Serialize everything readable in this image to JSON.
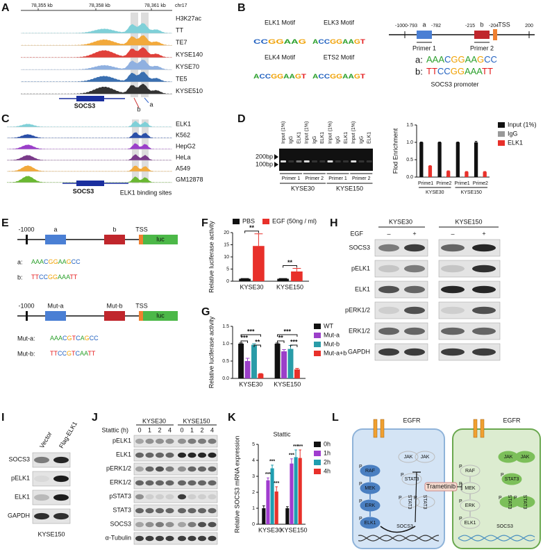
{
  "panel_labels": [
    "A",
    "B",
    "C",
    "D",
    "E",
    "F",
    "G",
    "H",
    "I",
    "J",
    "K",
    "L"
  ],
  "panel_a": {
    "coordinates": [
      "78,355 kb",
      "78,358 kb",
      "78,361 kb"
    ],
    "chromosome": "chr17",
    "header": "H3K27ac",
    "tracks": [
      "TT",
      "TE7",
      "KYSE140",
      "KYSE70",
      "TE5",
      "KYSE510"
    ],
    "gene": "SOCS3",
    "sites": [
      "b",
      "a"
    ]
  },
  "panel_b": {
    "motifs": [
      {
        "name": "ELK1 Motif",
        "logo": "CCGGAAG"
      },
      {
        "name": "ELK3 Motif",
        "logo": "ACCGGAAGT"
      },
      {
        "name": "ELK4 Motif",
        "logo": "ACCGGAAGT"
      },
      {
        "name": "ETS2 Motif",
        "logo": "ACCGGAAGT"
      }
    ],
    "positions": [
      "-1000",
      "-793",
      "-782",
      "-215",
      "-204",
      "200"
    ],
    "sites": [
      "a",
      "b"
    ],
    "tss": "TSS",
    "primers": [
      "Primer 1",
      "Primer 2"
    ],
    "sequences": [
      {
        "label": "a:",
        "seq": "AAACGGAAGCC"
      },
      {
        "label": "b:",
        "seq": "TTCCGGAAATT"
      }
    ],
    "caption": "SOCS3 promoter"
  },
  "panel_c": {
    "tracks": [
      "ELK1",
      "K562",
      "HepG2",
      "HeLa",
      "A549",
      "GM12878"
    ],
    "gene": "SOCS3",
    "annotation": "ELK1 binding sites"
  },
  "panel_d": {
    "gel": {
      "lanes": [
        "Input (1%)",
        "IgG",
        "ELK1",
        "Input (1%)",
        "IgG",
        "ELK1",
        "Input (1%)",
        "IgG",
        "ELK1",
        "Input (1%)",
        "IgG",
        "ELK1"
      ],
      "markers": [
        "200bp",
        "100bp"
      ],
      "primers": [
        "Primer 1",
        "Primer 2",
        "Primer 1",
        "Primer 2"
      ],
      "cell_lines": [
        "KYSE30",
        "KYSE150"
      ]
    },
    "chart": {
      "type": "bar",
      "ylabel": "Flod Enrichment",
      "categories": [
        "Prime1",
        "Prime2",
        "Prime1",
        "Prime2"
      ],
      "groups": [
        "KYSE30",
        "KYSE150"
      ],
      "series": [
        {
          "name": "Input (1%)",
          "color": "#111111",
          "values": [
            1,
            1,
            1,
            1
          ],
          "errors": [
            0.01,
            0.01,
            0.01,
            0.03
          ]
        },
        {
          "name": "IgG",
          "color": "#999999",
          "values": [
            0.01,
            0.01,
            0.01,
            0.01
          ],
          "errors": [
            0,
            0,
            0,
            0
          ]
        },
        {
          "name": "ELK1",
          "color": "#e8302a",
          "values": [
            0.32,
            0.17,
            0.15,
            0.15
          ],
          "errors": [
            0.01,
            0.01,
            0.01,
            0.01
          ]
        }
      ],
      "ylim": [
        0,
        1.5
      ],
      "yticks": [
        {
          "value": 0,
          "label": "0.0"
        },
        0.5,
        {
          "value": 1,
          "label": "1.0"
        },
        1.5
      ],
      "legend": "right"
    }
  },
  "panel_e": {
    "constructs": [
      {
        "position": "-1000",
        "sites": [
          "a",
          "b"
        ],
        "tss": "TSS",
        "reporter": "luc",
        "sequences": [
          {
            "label": "a:",
            "seq": "AAACGGAAGCC"
          },
          {
            "label": "b:",
            "seq": "TTCCGGAAATT"
          }
        ]
      },
      {
        "position": "-1000",
        "sites": [
          "Mut-a",
          "Mut-b"
        ],
        "tss": "TSS",
        "reporter": "luc",
        "sequences": [
          {
            "label": "Mut-a:",
            "seq": "AAACGTCAGCC"
          },
          {
            "label": "Mut-b:",
            "seq": "TTCCGTCAATT"
          }
        ]
      }
    ]
  },
  "panel_f": {
    "type": "bar",
    "ylabel": "Relative luciferase activity",
    "categories": [
      "KYSE30",
      "KYSE150"
    ],
    "series": [
      {
        "name": "PBS",
        "color": "#111111",
        "values": [
          1,
          1
        ],
        "errors": [
          0.1,
          0.1
        ]
      },
      {
        "name": "EGF (50ng / ml)",
        "color": "#e8302a",
        "values": [
          14.5,
          4
        ],
        "errors": [
          5,
          1.3
        ]
      }
    ],
    "ylim": [
      0,
      20
    ],
    "yticks": [
      0,
      5,
      10,
      15,
      20
    ],
    "legend": "top",
    "significance": [
      "**",
      "**"
    ]
  },
  "panel_g": {
    "type": "bar",
    "ylabel": "Relative luciferase activity",
    "categories": [
      "KYSE30",
      "KYSE150"
    ],
    "series": [
      {
        "name": "WT",
        "color": "#111111",
        "values": [
          1,
          1
        ],
        "errors": [
          0.02,
          0.02
        ]
      },
      {
        "name": "Mut-a",
        "color": "#9b3fc9",
        "values": [
          0.5,
          0.78
        ],
        "errors": [
          0.08,
          0.05
        ]
      },
      {
        "name": "Mut-b",
        "color": "#2a9ca8",
        "values": [
          0.97,
          0.85
        ],
        "errors": [
          0.03,
          0.1
        ]
      },
      {
        "name": "Mut-a+b",
        "color": "#e8302a",
        "values": [
          0.13,
          0.26
        ],
        "errors": [
          0.01,
          0.03
        ]
      }
    ],
    "ylim": [
      0,
      1.5
    ],
    "yticks": [
      {
        "value": 0,
        "label": "0.0"
      },
      0.5,
      {
        "value": 1,
        "label": "1.0"
      },
      1.5
    ],
    "legend": "right",
    "significance": [
      [
        "***",
        "***",
        "**"
      ],
      [
        "***",
        "**",
        "***"
      ]
    ]
  },
  "panel_h": {
    "cell_lines": [
      "KYSE30",
      "KYSE150"
    ],
    "treatment": "EGF",
    "conditions": [
      "–",
      "+",
      "–",
      "+"
    ],
    "proteins": [
      "SOCS3",
      "pELK1",
      "ELK1",
      "pERK1/2",
      "ERK1/2",
      "GAPDH"
    ]
  },
  "panel_i": {
    "lanes": [
      "Vector",
      "Flag-ELK1"
    ],
    "proteins": [
      "SOCS3",
      "pELK1",
      "ELK1",
      "GAPDH"
    ],
    "cell_line": "KYSE150"
  },
  "panel_j": {
    "treatment": "Stattic (h)",
    "cell_lines": [
      "KYSE30",
      "KYSE150"
    ],
    "timepoints": [
      "0",
      "1",
      "2",
      "4",
      "0",
      "1",
      "2",
      "4"
    ],
    "proteins": [
      "pELK1",
      "ELK1",
      "pERK1/2",
      "ERK1/2",
      "pSTAT3",
      "STAT3",
      "SOCS3",
      "α-Tubulin"
    ]
  },
  "panel_k": {
    "type": "bar",
    "title": "Stattic",
    "ylabel": "Relative SOCS3 mRNA expression",
    "categories": [
      "KYSE30",
      "KYSE150"
    ],
    "series": [
      {
        "name": "0h",
        "color": "#111111",
        "values": [
          1,
          1
        ],
        "errors": [
          0.15,
          0.1
        ]
      },
      {
        "name": "1h",
        "color": "#a03ccf",
        "values": [
          2.75,
          3.8
        ],
        "errors": [
          0.15,
          0.3
        ]
      },
      {
        "name": "2h",
        "color": "#1f9eb0",
        "values": [
          3.5,
          4.2
        ],
        "errors": [
          0.2,
          0.45
        ]
      },
      {
        "name": "4h",
        "color": "#e8302a",
        "values": [
          2.05,
          4.15
        ],
        "errors": [
          0.3,
          0.5
        ]
      }
    ],
    "ylim": [
      0,
      5
    ],
    "yticks": [
      0,
      1,
      2,
      3,
      4,
      5
    ],
    "legend": "right",
    "significance": [
      [
        "***",
        "***",
        "***"
      ],
      [
        "***",
        "***",
        "***"
      ]
    ]
  },
  "panel_l": {
    "receptors": [
      "EGFR",
      "EGFR"
    ],
    "inhibitor": "Trametinib",
    "phospho": "P",
    "cells": [
      {
        "nodes": [
          "RAF",
          "MEK",
          "ERK",
          "ELK1",
          "SOCS3",
          "JAK",
          "JAK",
          "STAT3",
          "STAT3",
          "STAT3"
        ]
      },
      {
        "nodes": [
          "RAF",
          "MEK",
          "ERK",
          "ELK1",
          "SOCS3",
          "JAK",
          "JAK",
          "STAT3",
          "STAT3",
          "STAT3"
        ]
      }
    ]
  }
}
